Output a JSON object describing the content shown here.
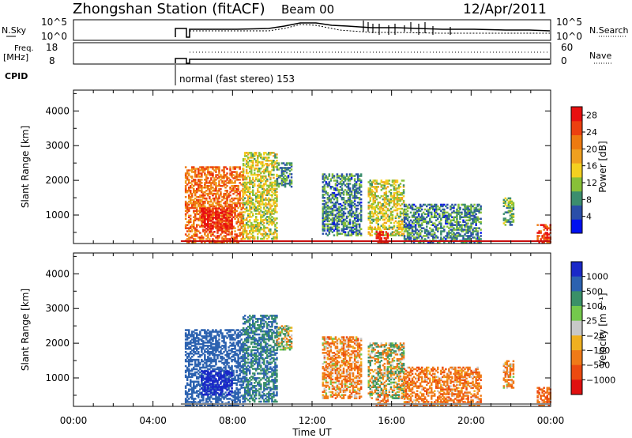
{
  "header": {
    "station": "Zhongshan Station (fitACF)",
    "beam": "Beam 00",
    "date": "12/Apr/2011"
  },
  "summary": {
    "nsky_label": "N.Sky",
    "nsky_ticks": [
      "10^5",
      "10^0"
    ],
    "nsearch_label": "N.Search",
    "nsearch_ticks": [
      "10^5",
      "10^0"
    ],
    "freq_label_1": "Freq.",
    "freq_label_2": "[MHz]",
    "freq_ticks": [
      "18",
      "8"
    ],
    "nave_label": "Nave",
    "nave_ticks": [
      "60",
      "0"
    ],
    "cpid_label": "CPID",
    "cpid_text": "normal (fast stereo) 153"
  },
  "colors": {
    "power": [
      "#0010f0",
      "#2a4ea8",
      "#3c8e6e",
      "#88c038",
      "#f4d020",
      "#f0a020",
      "#ee7a10",
      "#ec4010",
      "#e81010"
    ],
    "velocity": [
      "#1a28c8",
      "#2c62b0",
      "#3a9068",
      "#74c84c",
      "#c8c8c8",
      "#f0b020",
      "#f07a18",
      "#ec4a10",
      "#e01010"
    ]
  },
  "chart_data": [
    {
      "type": "heatmap",
      "name": "Power",
      "xlabel": "",
      "ylabel": "Slant Range [km]",
      "colorbar_label": "Power [dB]",
      "x_ticks": [
        "00:00",
        "04:00",
        "08:00",
        "12:00",
        "16:00",
        "20:00",
        "00:00"
      ],
      "x_hours": [
        0,
        4,
        8,
        12,
        16,
        20,
        24
      ],
      "xlim": [
        0,
        24
      ],
      "y_ticks": [
        1000,
        2000,
        3000,
        4000
      ],
      "ylim": [
        180,
        4600
      ],
      "colorbar_ticks": [
        "4",
        "8",
        "12",
        "16",
        "20",
        "24",
        "28"
      ],
      "colorbar_range": [
        0,
        30
      ],
      "echo_regions": [
        {
          "t0": 5.6,
          "t1": 8.5,
          "r0": 200,
          "r1": 2400,
          "level": 22
        },
        {
          "t0": 6.4,
          "t1": 8.0,
          "r0": 500,
          "r1": 1200,
          "level": 28
        },
        {
          "t0": 8.5,
          "t1": 10.2,
          "r0": 300,
          "r1": 2800,
          "level": 14
        },
        {
          "t0": 10.2,
          "t1": 11.0,
          "r0": 1800,
          "r1": 2500,
          "level": 8
        },
        {
          "t0": 12.5,
          "t1": 14.5,
          "r0": 400,
          "r1": 2200,
          "level": 8
        },
        {
          "t0": 14.8,
          "t1": 16.6,
          "r0": 400,
          "r1": 2000,
          "level": 14
        },
        {
          "t0": 15.2,
          "t1": 15.8,
          "r0": 180,
          "r1": 500,
          "level": 28
        },
        {
          "t0": 16.6,
          "t1": 20.5,
          "r0": 200,
          "r1": 1300,
          "level": 8
        },
        {
          "t0": 21.6,
          "t1": 22.1,
          "r0": 700,
          "r1": 1500,
          "level": 10
        },
        {
          "t0": 23.3,
          "t1": 24.0,
          "r0": 200,
          "r1": 700,
          "level": 26
        }
      ]
    },
    {
      "type": "heatmap",
      "name": "Velocity",
      "xlabel": "Time UT",
      "ylabel": "Slant Range [km]",
      "colorbar_label": "Velocity [m s⁻¹]",
      "x_ticks": [
        "00:00",
        "04:00",
        "08:00",
        "12:00",
        "16:00",
        "20:00",
        "00:00"
      ],
      "x_hours": [
        0,
        4,
        8,
        12,
        16,
        20,
        24
      ],
      "xlim": [
        0,
        24
      ],
      "y_ticks": [
        1000,
        2000,
        3000,
        4000
      ],
      "ylim": [
        180,
        4600
      ],
      "colorbar_ticks": [
        "1000",
        "500",
        "100",
        "25",
        "−25",
        "−100",
        "−500",
        "−1000"
      ],
      "echo_regions": [
        {
          "t0": 5.6,
          "t1": 8.5,
          "r0": 200,
          "r1": 2400,
          "level": 500
        },
        {
          "t0": 6.4,
          "t1": 8.0,
          "r0": 500,
          "r1": 1200,
          "level": 1000
        },
        {
          "t0": 8.5,
          "t1": 10.2,
          "r0": 300,
          "r1": 2800,
          "level": 300
        },
        {
          "t0": 10.2,
          "t1": 11.0,
          "r0": 1800,
          "r1": 2500,
          "level": 50
        },
        {
          "t0": 12.5,
          "t1": 14.5,
          "r0": 400,
          "r1": 2200,
          "level": -150
        },
        {
          "t0": 14.8,
          "t1": 16.6,
          "r0": 400,
          "r1": 2000,
          "level": 0
        },
        {
          "t0": 15.2,
          "t1": 15.8,
          "r0": 180,
          "r1": 500,
          "level": -200
        },
        {
          "t0": 16.6,
          "t1": 20.5,
          "r0": 200,
          "r1": 1300,
          "level": -200
        },
        {
          "t0": 21.6,
          "t1": 22.1,
          "r0": 700,
          "r1": 1500,
          "level": -150
        },
        {
          "t0": 23.3,
          "t1": 24.0,
          "r0": 200,
          "r1": 700,
          "level": -300
        }
      ]
    }
  ]
}
